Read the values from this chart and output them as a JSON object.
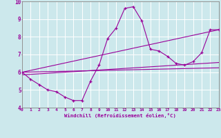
{
  "xlabel": "Windchill (Refroidissement éolien,°C)",
  "xlim": [
    0,
    23
  ],
  "ylim": [
    4,
    10
  ],
  "yticks": [
    4,
    5,
    6,
    7,
    8,
    9,
    10
  ],
  "xticks": [
    0,
    1,
    2,
    3,
    4,
    5,
    6,
    7,
    8,
    9,
    10,
    11,
    12,
    13,
    14,
    15,
    16,
    17,
    18,
    19,
    20,
    21,
    22,
    23
  ],
  "bg_color": "#cce8ec",
  "line_color": "#990099",
  "grid_color": "#ffffff",
  "series1_x": [
    0,
    1,
    2,
    3,
    4,
    5,
    6,
    7,
    8,
    9,
    10,
    11,
    12,
    13,
    14,
    15,
    16,
    17,
    18,
    19,
    20,
    21,
    22,
    23
  ],
  "series1_y": [
    6.0,
    5.6,
    5.3,
    5.0,
    4.9,
    4.6,
    4.4,
    4.4,
    5.5,
    6.4,
    7.9,
    8.5,
    9.6,
    9.7,
    8.9,
    7.3,
    7.2,
    6.9,
    6.5,
    6.4,
    6.6,
    7.1,
    8.4,
    8.4
  ],
  "series2_x": [
    0,
    23
  ],
  "series2_y": [
    6.0,
    8.4
  ],
  "series3_x": [
    0,
    23
  ],
  "series3_y": [
    5.85,
    6.55
  ],
  "series4_x": [
    0,
    23
  ],
  "series4_y": [
    6.0,
    6.25
  ]
}
